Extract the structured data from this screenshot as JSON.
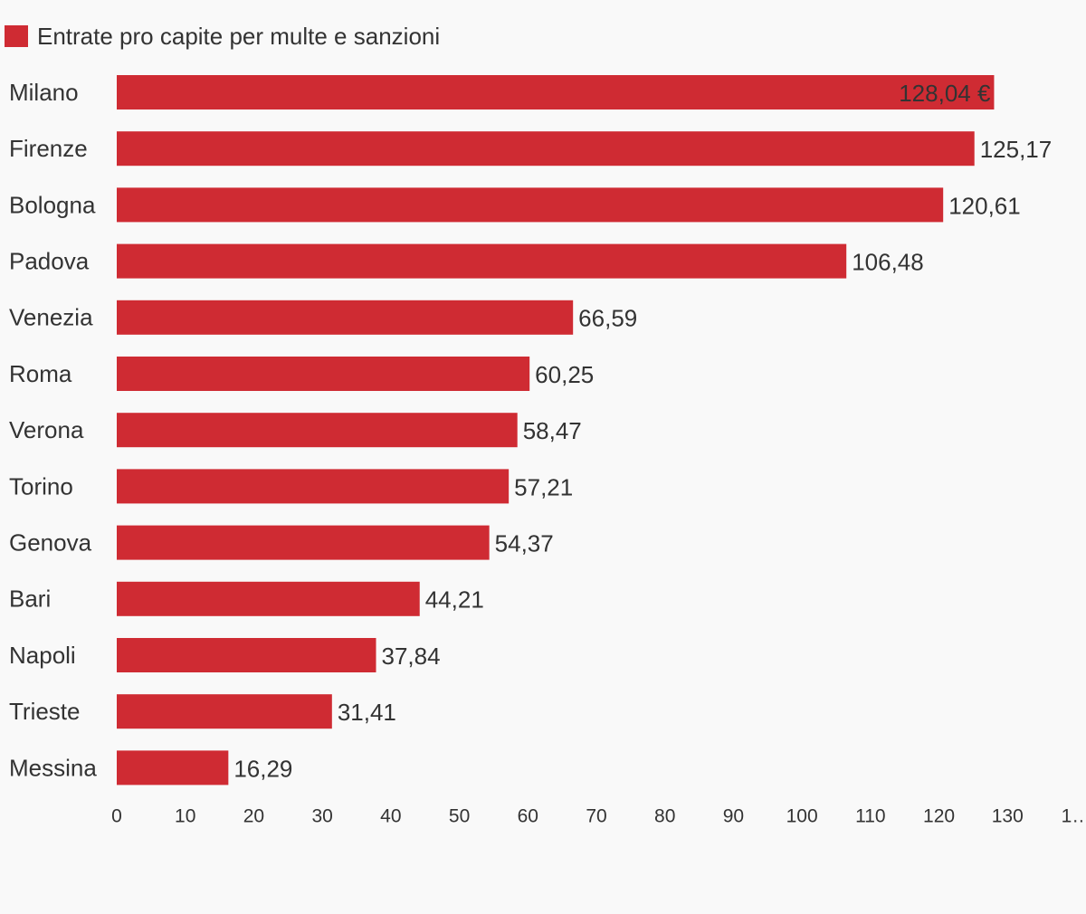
{
  "chart_data": {
    "type": "bar",
    "orientation": "horizontal",
    "legend": "Entrate pro capite per multe e sanzioni",
    "color": "#cf2b33",
    "categories": [
      "Milano",
      "Firenze",
      "Bologna",
      "Padova",
      "Venezia",
      "Roma",
      "Verona",
      "Torino",
      "Genova",
      "Bari",
      "Napoli",
      "Trieste",
      "Messina"
    ],
    "values": [
      128.04,
      125.17,
      120.61,
      106.48,
      66.59,
      60.25,
      58.47,
      57.21,
      54.37,
      44.21,
      37.84,
      31.41,
      16.29
    ],
    "value_labels": [
      "128,04 €",
      "125,17",
      "120,61",
      "106,48",
      "66,59",
      "60,25",
      "58,47",
      "57,21",
      "54,37",
      "44,21",
      "37,84",
      "31,41",
      "16,29"
    ],
    "xlim": [
      0,
      140
    ],
    "xticks": [
      0,
      10,
      20,
      30,
      40,
      50,
      60,
      70,
      80,
      90,
      100,
      110,
      120,
      130,
      {
        "value": 140,
        "label": "1…"
      }
    ],
    "grid": false
  }
}
